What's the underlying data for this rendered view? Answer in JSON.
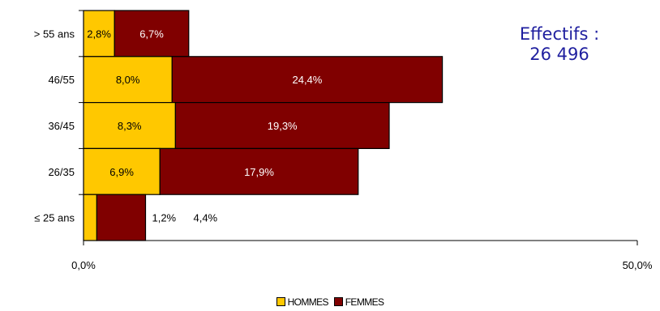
{
  "chart_data": {
    "type": "bar",
    "orientation": "horizontal",
    "stacked": true,
    "categories": [
      "> 55 ans",
      "46/55",
      "36/45",
      "26/35",
      "≤ 25 ans"
    ],
    "series": [
      {
        "name": "HOMMES",
        "color": "#FFC800",
        "values": [
          2.8,
          8.0,
          8.3,
          6.9,
          1.2
        ],
        "labels": [
          "2,8%",
          "8,0%",
          "8,3%",
          "6,9%",
          "1,2%"
        ]
      },
      {
        "name": "FEMMES",
        "color": "#800000",
        "values": [
          6.7,
          24.4,
          19.3,
          17.9,
          4.4
        ],
        "labels": [
          "6,7%",
          "24,4%",
          "19,3%",
          "17,9%",
          "4,4%"
        ]
      }
    ],
    "xlim": [
      0,
      50
    ],
    "x_ticks": [
      "0,0%",
      "50,0%"
    ],
    "grid": false,
    "legend_position": "bottom",
    "annotation": [
      "Effectifs :",
      "26 496"
    ]
  }
}
